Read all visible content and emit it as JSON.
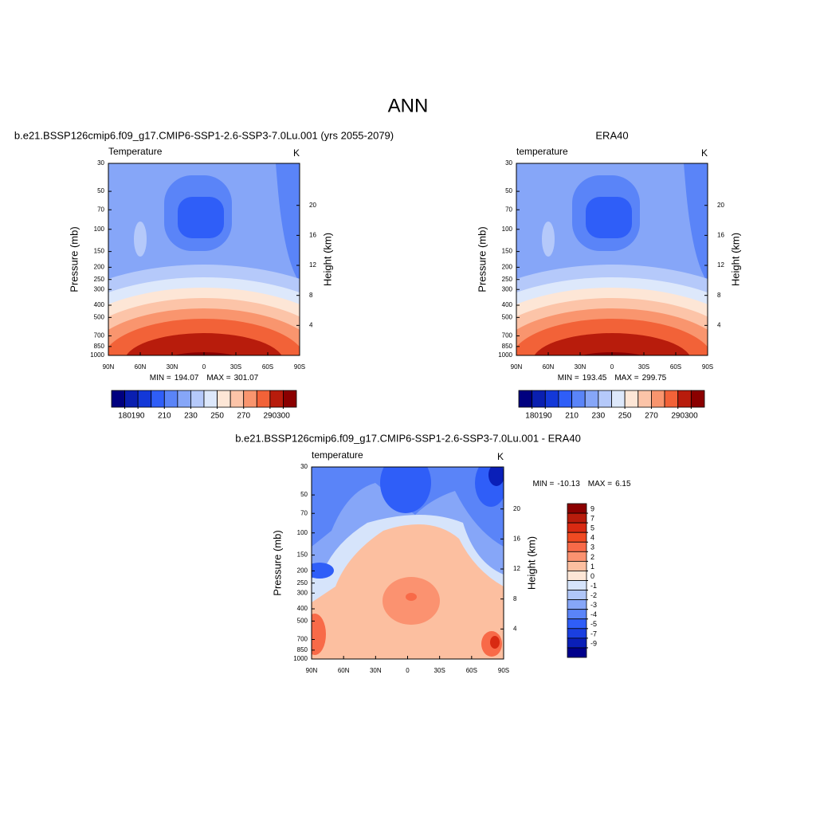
{
  "title": "ANN",
  "chart_data": [
    {
      "type": "contour",
      "title": "b.e21.BSSP126cmip6.f09_g17.CMIP6-SSP1-2.6-SSP3-7.0Lu.001 (yrs 2055-2079)",
      "left_label": "Temperature",
      "right_label": "K",
      "y_label": "Pressure (mb)",
      "y2_label": "Height (km)",
      "xlim": [
        90,
        -90
      ],
      "xticks": [
        {
          "value": 90,
          "label": "90N"
        },
        {
          "value": 60,
          "label": "60N"
        },
        {
          "value": 30,
          "label": "30N"
        },
        0,
        {
          "value": -30,
          "label": "30S"
        },
        {
          "value": -60,
          "label": "60S"
        },
        {
          "value": -90,
          "label": "90S"
        }
      ],
      "ylim": [
        1000,
        30
      ],
      "log_y": true,
      "yticks": [
        1000,
        850,
        700,
        500,
        400,
        300,
        250,
        200,
        150,
        100,
        70,
        50,
        30
      ],
      "y2ticks": [
        4,
        8,
        12,
        16,
        20
      ],
      "min_label": "MIN =",
      "min": 194.07,
      "max_label": "MAX =",
      "max": 301.07,
      "colorbar": {
        "orientation": "horizontal",
        "clim": [
          170,
          310
        ],
        "ticks": [
          180,
          190,
          210,
          230,
          250,
          270,
          290,
          300
        ],
        "colors": [
          "#00007f",
          "#0a1fb0",
          "#1338d8",
          "#2f5ef8",
          "#5a84f8",
          "#86a6f8",
          "#b5c9fa",
          "#dde8fb",
          "#fde6d6",
          "#fcc4a8",
          "#f9956e",
          "#f26238",
          "#b81c0c",
          "#8b0000"
        ]
      }
    },
    {
      "type": "contour",
      "title": "ERA40",
      "left_label": "temperature",
      "right_label": "K",
      "y_label": "Pressure (mb)",
      "y2_label": "Height (km)",
      "xlim": [
        90,
        -90
      ],
      "xticks": [
        {
          "value": 90,
          "label": "90N"
        },
        {
          "value": 60,
          "label": "60N"
        },
        {
          "value": 30,
          "label": "30N"
        },
        0,
        {
          "value": -30,
          "label": "30S"
        },
        {
          "value": -60,
          "label": "60S"
        },
        {
          "value": -90,
          "label": "90S"
        }
      ],
      "ylim": [
        1000,
        30
      ],
      "log_y": true,
      "yticks": [
        1000,
        850,
        700,
        500,
        400,
        300,
        250,
        200,
        150,
        100,
        70,
        50,
        30
      ],
      "y2ticks": [
        4,
        8,
        12,
        16,
        20
      ],
      "min_label": "MIN =",
      "min": 193.45,
      "max_label": "MAX =",
      "max": 299.75,
      "colorbar": {
        "orientation": "horizontal",
        "clim": [
          170,
          310
        ],
        "ticks": [
          180,
          190,
          210,
          230,
          250,
          270,
          290,
          300
        ],
        "colors": [
          "#00007f",
          "#0a1fb0",
          "#1338d8",
          "#2f5ef8",
          "#5a84f8",
          "#86a6f8",
          "#b5c9fa",
          "#dde8fb",
          "#fde6d6",
          "#fcc4a8",
          "#f9956e",
          "#f26238",
          "#b81c0c",
          "#8b0000"
        ]
      }
    },
    {
      "type": "contour-diff",
      "title": "b.e21.BSSP126cmip6.f09_g17.CMIP6-SSP1-2.6-SSP3-7.0Lu.001 - ERA40",
      "left_label": "temperature",
      "right_label": "K",
      "y_label": "Pressure (mb)",
      "y2_label": "Height (km)",
      "xlim": [
        90,
        -90
      ],
      "xticks": [
        {
          "value": 90,
          "label": "90N"
        },
        {
          "value": 60,
          "label": "60N"
        },
        {
          "value": 30,
          "label": "30N"
        },
        0,
        {
          "value": -30,
          "label": "30S"
        },
        {
          "value": -60,
          "label": "60S"
        },
        {
          "value": -90,
          "label": "90S"
        }
      ],
      "ylim": [
        1000,
        30
      ],
      "log_y": true,
      "yticks": [
        1000,
        850,
        700,
        500,
        400,
        300,
        250,
        200,
        150,
        100,
        70,
        50,
        30
      ],
      "y2ticks": [
        4,
        8,
        12,
        16,
        20
      ],
      "min_label": "MIN =",
      "min": -10.13,
      "max_label": "MAX =",
      "max": 6.15,
      "colorbar": {
        "orientation": "vertical",
        "ticks": [
          9,
          7,
          5,
          4,
          3,
          2,
          1,
          0,
          -1,
          -2,
          -3,
          -4,
          -5,
          -7,
          -9
        ],
        "colors": [
          "#8b0000",
          "#b81c0c",
          "#d82a12",
          "#f04a22",
          "#f86a48",
          "#fb9270",
          "#fcbfa0",
          "#fde6d6",
          "#d6e4fb",
          "#b0c6f8",
          "#86a6f8",
          "#5a84f8",
          "#2f5ef8",
          "#1a3fe0",
          "#0a1fb8",
          "#00008b"
        ]
      }
    }
  ]
}
